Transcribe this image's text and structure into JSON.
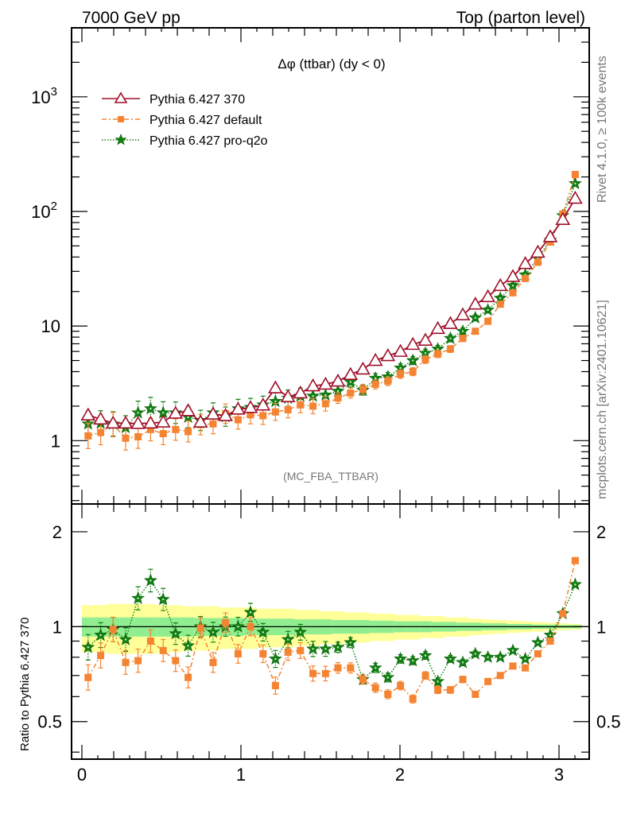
{
  "header": {
    "left": "7000 GeV pp",
    "right": "Top (parton level)"
  },
  "side_labels": {
    "rivet": "Rivet 4.1.0, ≥ 100k events",
    "mcplots": "mcplots.cern.ch [arXiv:2401.10621]"
  },
  "chart_data": [
    {
      "type": "line",
      "panel": "main",
      "title": "Δφ (ttbar) (dy < 0)",
      "analysis_label": "(MC_FBA_TTBAR)",
      "xlabel": "",
      "ylabel": "",
      "yscale": "log",
      "xlim": [
        -0.065,
        3.19
      ],
      "ylim": [
        0.28,
        4000
      ],
      "yticks": [
        {
          "value": 1000,
          "label": "10",
          "sup": "3"
        },
        {
          "value": 100,
          "label": "10",
          "sup": "2"
        },
        {
          "value": 10,
          "label": "10",
          "sup": ""
        },
        {
          "value": 1,
          "label": "1",
          "sup": ""
        }
      ],
      "legend_position": "top-left",
      "x": [
        0.039,
        0.118,
        0.196,
        0.275,
        0.353,
        0.432,
        0.511,
        0.589,
        0.668,
        0.746,
        0.825,
        0.903,
        0.982,
        1.06,
        1.139,
        1.217,
        1.296,
        1.374,
        1.453,
        1.532,
        1.61,
        1.689,
        1.767,
        1.846,
        1.924,
        2.003,
        2.081,
        2.16,
        2.238,
        2.317,
        2.395,
        2.474,
        2.553,
        2.631,
        2.71,
        2.788,
        2.867,
        2.945,
        3.024,
        3.102
      ],
      "series": [
        {
          "name": "Pythia 6.427 370",
          "color": "#a0102a",
          "marker": "triangle-open",
          "line": "solid",
          "values": [
            1.67,
            1.54,
            1.42,
            1.42,
            1.41,
            1.42,
            1.45,
            1.73,
            1.82,
            1.45,
            1.7,
            1.65,
            1.88,
            1.94,
            2.04,
            2.88,
            2.41,
            2.6,
            3.0,
            3.1,
            3.3,
            3.77,
            4.2,
            5.0,
            5.5,
            6.0,
            6.9,
            7.5,
            9.5,
            10.5,
            12.5,
            15.5,
            18.0,
            22.5,
            27.0,
            35.0,
            44.0,
            60.0,
            85.0,
            130.0
          ]
        },
        {
          "name": "Pythia 6.427 default",
          "color": "#f58432",
          "marker": "square",
          "line": "dashdot",
          "values": [
            1.1,
            1.18,
            1.38,
            1.05,
            1.08,
            1.25,
            1.15,
            1.25,
            1.2,
            1.38,
            1.4,
            1.72,
            1.52,
            1.68,
            1.65,
            1.78,
            1.86,
            2.05,
            2.0,
            2.1,
            2.35,
            2.6,
            2.8,
            3.1,
            3.3,
            3.8,
            4.0,
            5.1,
            5.7,
            6.3,
            7.8,
            9.0,
            11.0,
            15.5,
            19.5,
            26.0,
            36.0,
            54.0,
            95.0,
            210.0
          ]
        },
        {
          "name": "Pythia 6.427 pro-q2o",
          "color": "#118011",
          "marker": "star",
          "line": "dotted",
          "values": [
            1.4,
            1.42,
            1.4,
            1.3,
            1.75,
            1.9,
            1.75,
            1.75,
            1.6,
            1.5,
            1.75,
            1.62,
            1.9,
            1.95,
            2.05,
            2.2,
            2.35,
            2.45,
            2.45,
            2.5,
            2.7,
            3.25,
            2.75,
            3.5,
            3.6,
            4.3,
            5.0,
            5.8,
            6.3,
            7.8,
            9.0,
            11.8,
            13.8,
            17.5,
            22.5,
            28.0,
            39.0,
            56.0,
            92.0,
            175.0
          ]
        }
      ]
    },
    {
      "type": "line",
      "panel": "ratio",
      "ylabel": "Ratio to Pythia 6.427 370",
      "yscale": "log",
      "xlim": [
        -0.065,
        3.19
      ],
      "ylim": [
        0.38,
        2.45
      ],
      "xticks": [
        0,
        1,
        2,
        3
      ],
      "yticks": [
        {
          "value": 2,
          "label": "2"
        },
        {
          "value": 1,
          "label": "1"
        },
        {
          "value": 0.5,
          "label": "0.5"
        }
      ],
      "reference_line": 1,
      "band_inner_halfwidth": [
        0.07,
        0.07,
        0.07,
        0.07,
        0.07,
        0.07,
        0.07,
        0.07,
        0.07,
        0.065,
        0.065,
        0.065,
        0.065,
        0.06,
        0.06,
        0.06,
        0.06,
        0.055,
        0.055,
        0.055,
        0.05,
        0.05,
        0.05,
        0.045,
        0.045,
        0.04,
        0.04,
        0.04,
        0.035,
        0.035,
        0.03,
        0.03,
        0.025,
        0.025,
        0.02,
        0.02,
        0.015,
        0.015,
        0.012,
        0.012
      ],
      "band_outer_halfwidth": [
        0.17,
        0.17,
        0.18,
        0.18,
        0.18,
        0.18,
        0.17,
        0.17,
        0.16,
        0.16,
        0.16,
        0.15,
        0.15,
        0.15,
        0.14,
        0.14,
        0.14,
        0.13,
        0.13,
        0.12,
        0.12,
        0.11,
        0.11,
        0.1,
        0.1,
        0.09,
        0.09,
        0.08,
        0.08,
        0.07,
        0.07,
        0.06,
        0.055,
        0.05,
        0.045,
        0.04,
        0.035,
        0.03,
        0.025,
        0.02
      ],
      "band_inner_color": "#90ee90",
      "band_outer_color": "#ffff99",
      "series": [
        {
          "name": "Pythia 6.427 default",
          "color": "#f58432",
          "marker": "square",
          "line": "dashdot",
          "values": [
            0.69,
            0.81,
            0.98,
            0.77,
            0.78,
            0.9,
            0.84,
            0.78,
            0.69,
            0.99,
            0.77,
            1.03,
            0.82,
            1.0,
            0.82,
            0.65,
            0.83,
            0.84,
            0.71,
            0.71,
            0.74,
            0.74,
            0.68,
            0.64,
            0.61,
            0.65,
            0.59,
            0.7,
            0.63,
            0.63,
            0.68,
            0.61,
            0.67,
            0.7,
            0.75,
            0.74,
            0.82,
            0.9,
            1.1,
            1.62
          ]
        },
        {
          "name": "Pythia 6.427 pro-q2o",
          "color": "#118011",
          "marker": "star",
          "line": "dotted",
          "values": [
            0.86,
            0.94,
            0.98,
            0.91,
            1.23,
            1.4,
            1.22,
            0.95,
            0.87,
            1.0,
            0.96,
            1.0,
            1.0,
            1.11,
            0.96,
            0.79,
            0.91,
            0.96,
            0.85,
            0.85,
            0.86,
            0.89,
            0.68,
            0.74,
            0.69,
            0.79,
            0.78,
            0.81,
            0.67,
            0.79,
            0.77,
            0.82,
            0.8,
            0.8,
            0.84,
            0.79,
            0.89,
            0.94,
            1.1,
            1.36
          ]
        }
      ]
    }
  ]
}
